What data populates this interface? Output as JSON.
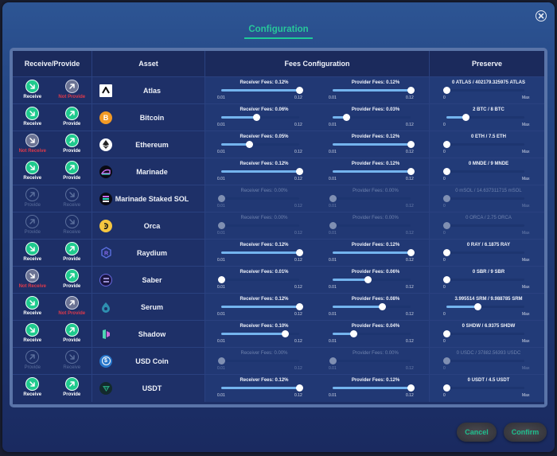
{
  "dialog": {
    "title": "Configuration",
    "close_icon": "close-circle-icon"
  },
  "table": {
    "headers": [
      "Receive/Provide",
      "Asset",
      "Fees Configuration",
      "Preserve"
    ],
    "fee_min_label": "0.01",
    "fee_max_label": "0.12",
    "preserve_min_label": "0",
    "preserve_max_label": "Max",
    "rows": [
      {
        "asset": "Atlas",
        "icon": "atlas-icon",
        "enabled": true,
        "receive": {
          "state": "on",
          "label": "Receive"
        },
        "provide": {
          "state": "off",
          "label": "Not Provide"
        },
        "receiver_fee": {
          "label": "Receiver Fees: 0.12%",
          "value": 0.12
        },
        "provider_fee": {
          "label": "Provider Fees: 0.12%",
          "value": 0.12
        },
        "preserve": {
          "label": "0 ATLAS / 402179.325975 ATLAS",
          "ratio": 0
        }
      },
      {
        "asset": "Bitcoin",
        "icon": "bitcoin-icon",
        "enabled": true,
        "receive": {
          "state": "on",
          "label": "Receive"
        },
        "provide": {
          "state": "on",
          "label": "Provide"
        },
        "receiver_fee": {
          "label": "Receiver Fees: 0.06%",
          "value": 0.06
        },
        "provider_fee": {
          "label": "Provider Fees: 0.03%",
          "value": 0.03
        },
        "preserve": {
          "label": "2 BTC / 8 BTC",
          "ratio": 0.25
        }
      },
      {
        "asset": "Ethereum",
        "icon": "ethereum-icon",
        "enabled": true,
        "receive": {
          "state": "off",
          "label": "Not Receive"
        },
        "provide": {
          "state": "on",
          "label": "Provide"
        },
        "receiver_fee": {
          "label": "Receiver Fees: 0.05%",
          "value": 0.05
        },
        "provider_fee": {
          "label": "Provider Fees: 0.12%",
          "value": 0.12
        },
        "preserve": {
          "label": "0 ETH / 7.5 ETH",
          "ratio": 0
        }
      },
      {
        "asset": "Marinade",
        "icon": "marinade-icon",
        "enabled": true,
        "receive": {
          "state": "on",
          "label": "Receive"
        },
        "provide": {
          "state": "on",
          "label": "Provide"
        },
        "receiver_fee": {
          "label": "Receiver Fees: 0.12%",
          "value": 0.12
        },
        "provider_fee": {
          "label": "Provider Fees: 0.12%",
          "value": 0.12
        },
        "preserve": {
          "label": "0 MNDE / 9 MNDE",
          "ratio": 0
        }
      },
      {
        "asset": "Marinade Staked SOL",
        "icon": "msol-icon",
        "enabled": false,
        "receive": {
          "state": "dis",
          "label": "Provide"
        },
        "provide": {
          "state": "dis",
          "label": "Receive"
        },
        "receiver_fee": {
          "label": "Receiver Fees: 0.00%",
          "value": 0.01
        },
        "provider_fee": {
          "label": "Provider Fees: 0.00%",
          "value": 0.01
        },
        "preserve": {
          "label": "0 mSOL / 14.637311715 mSOL",
          "ratio": 0
        }
      },
      {
        "asset": "Orca",
        "icon": "orca-icon",
        "enabled": false,
        "receive": {
          "state": "dis",
          "label": "Provide"
        },
        "provide": {
          "state": "dis",
          "label": "Receive"
        },
        "receiver_fee": {
          "label": "Receiver Fees: 0.00%",
          "value": 0.01
        },
        "provider_fee": {
          "label": "Provider Fees: 0.00%",
          "value": 0.01
        },
        "preserve": {
          "label": "0 ORCA / 2.75 ORCA",
          "ratio": 0
        }
      },
      {
        "asset": "Raydium",
        "icon": "raydium-icon",
        "enabled": true,
        "receive": {
          "state": "on",
          "label": "Receive"
        },
        "provide": {
          "state": "on",
          "label": "Provide"
        },
        "receiver_fee": {
          "label": "Receiver Fees: 0.12%",
          "value": 0.12
        },
        "provider_fee": {
          "label": "Provider Fees: 0.12%",
          "value": 0.12
        },
        "preserve": {
          "label": "0 RAY / 6.1875 RAY",
          "ratio": 0
        }
      },
      {
        "asset": "Saber",
        "icon": "saber-icon",
        "enabled": true,
        "receive": {
          "state": "off",
          "label": "Not Receive"
        },
        "provide": {
          "state": "on",
          "label": "Provide"
        },
        "receiver_fee": {
          "label": "Receiver Fees: 0.01%",
          "value": 0.01
        },
        "provider_fee": {
          "label": "Provider Fees: 0.06%",
          "value": 0.06
        },
        "preserve": {
          "label": "0 SBR / 9 SBR",
          "ratio": 0
        }
      },
      {
        "asset": "Serum",
        "icon": "serum-icon",
        "enabled": true,
        "receive": {
          "state": "on",
          "label": "Receive"
        },
        "provide": {
          "state": "off",
          "label": "Not Provide"
        },
        "receiver_fee": {
          "label": "Receiver Fees: 0.12%",
          "value": 0.12
        },
        "provider_fee": {
          "label": "Provider Fees: 0.08%",
          "value": 0.08
        },
        "preserve": {
          "label": "3.995514 SRM / 9.988785 SRM",
          "ratio": 0.4
        }
      },
      {
        "asset": "Shadow",
        "icon": "shadow-icon",
        "enabled": true,
        "receive": {
          "state": "on",
          "label": "Receive"
        },
        "provide": {
          "state": "on",
          "label": "Provide"
        },
        "receiver_fee": {
          "label": "Receiver Fees: 0.10%",
          "value": 0.1
        },
        "provider_fee": {
          "label": "Provider Fees: 0.04%",
          "value": 0.04
        },
        "preserve": {
          "label": "0 SHDW / 6.9375 SHDW",
          "ratio": 0
        }
      },
      {
        "asset": "USD Coin",
        "icon": "usdc-icon",
        "enabled": false,
        "receive": {
          "state": "dis",
          "label": "Provide"
        },
        "provide": {
          "state": "dis",
          "label": "Receive"
        },
        "receiver_fee": {
          "label": "Receiver Fees: 0.00%",
          "value": 0.01
        },
        "provider_fee": {
          "label": "Provider Fees: 0.00%",
          "value": 0.01
        },
        "preserve": {
          "label": "0 USDC / 37882.56393 USDC",
          "ratio": 0
        }
      },
      {
        "asset": "USDT",
        "icon": "usdt-icon",
        "enabled": true,
        "receive": {
          "state": "on",
          "label": "Receive"
        },
        "provide": {
          "state": "on",
          "label": "Provide"
        },
        "receiver_fee": {
          "label": "Receiver Fees: 0.12%",
          "value": 0.12
        },
        "provider_fee": {
          "label": "Provider Fees: 0.12%",
          "value": 0.12
        },
        "preserve": {
          "label": "0 USDT / 4.5 USDT",
          "ratio": 0
        }
      }
    ]
  },
  "footer": {
    "cancel_label": "Cancel",
    "confirm_label": "Confirm"
  },
  "colors": {
    "accent": "#1fca8e",
    "danger": "#e0394a",
    "slider_fill": "#74b4ee"
  }
}
